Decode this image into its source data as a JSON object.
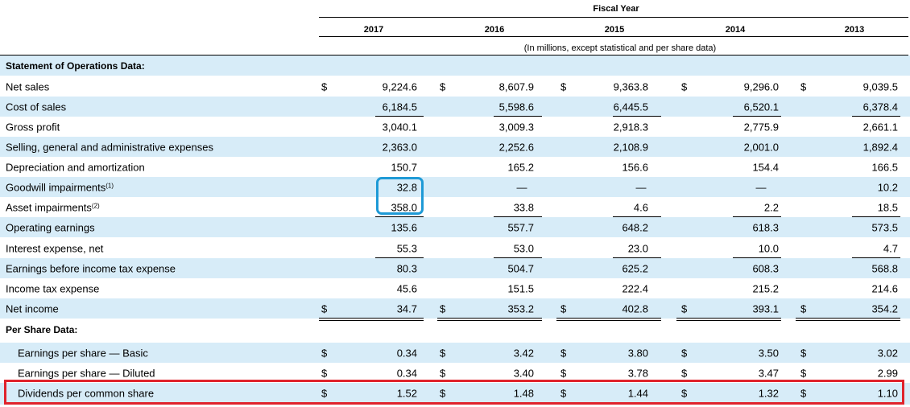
{
  "header": {
    "group_label": "Fiscal Year",
    "years": [
      "2017",
      "2016",
      "2015",
      "2014",
      "2013"
    ],
    "units_note": "(In millions, except statistical and per share data)"
  },
  "currency_symbol": "$",
  "rows": [
    {
      "label": "Statement of Operations Data:",
      "section": true
    },
    {
      "label": "Net sales",
      "dollar": true,
      "values": [
        "9,224.6",
        "8,607.9",
        "9,363.8",
        "9,296.0",
        "9,039.5"
      ]
    },
    {
      "label": "Cost of sales",
      "values": [
        "6,184.5",
        "5,598.6",
        "6,445.5",
        "6,520.1",
        "6,378.4"
      ]
    },
    {
      "label": "Gross profit",
      "values": [
        "3,040.1",
        "3,009.3",
        "2,918.3",
        "2,775.9",
        "2,661.1"
      ]
    },
    {
      "label": "Selling, general and administrative expenses",
      "values": [
        "2,363.0",
        "2,252.6",
        "2,108.9",
        "2,001.0",
        "1,892.4"
      ]
    },
    {
      "label": "Depreciation and amortization",
      "values": [
        "150.7",
        "165.2",
        "156.6",
        "154.4",
        "166.5"
      ]
    },
    {
      "label": "Goodwill impairments",
      "footnote": "(1)",
      "values": [
        "32.8",
        "—",
        "—",
        "—",
        "10.2"
      ]
    },
    {
      "label": "Asset impairments",
      "footnote": "(2)",
      "values": [
        "358.0",
        "33.8",
        "4.6",
        "2.2",
        "18.5"
      ]
    },
    {
      "label": "Operating earnings",
      "values": [
        "135.6",
        "557.7",
        "648.2",
        "618.3",
        "573.5"
      ]
    },
    {
      "label": "Interest expense, net",
      "values": [
        "55.3",
        "53.0",
        "23.0",
        "10.0",
        "4.7"
      ]
    },
    {
      "label": "Earnings before income tax expense",
      "values": [
        "80.3",
        "504.7",
        "625.2",
        "608.3",
        "568.8"
      ]
    },
    {
      "label": "Income tax expense",
      "values": [
        "45.6",
        "151.5",
        "222.4",
        "215.2",
        "214.6"
      ]
    },
    {
      "label": "Net income",
      "dollar": true,
      "values": [
        "34.7",
        "353.2",
        "402.8",
        "393.1",
        "354.2"
      ]
    },
    {
      "label": "Per Share Data:",
      "section": true
    },
    {
      "label": "Earnings per share — Basic",
      "dollar": true,
      "values": [
        "0.34",
        "3.42",
        "3.80",
        "3.50",
        "3.02"
      ]
    },
    {
      "label": "Earnings per share — Diluted",
      "dollar": true,
      "values": [
        "0.34",
        "3.40",
        "3.78",
        "3.47",
        "2.99"
      ]
    },
    {
      "label": "Dividends per common share",
      "dollar": true,
      "values": [
        "1.52",
        "1.48",
        "1.44",
        "1.32",
        "1.10"
      ]
    }
  ],
  "highlights": {
    "blue_box": "#1e9ad6",
    "red_box": "#e0232c",
    "row_shade": "#d7ecf8"
  }
}
